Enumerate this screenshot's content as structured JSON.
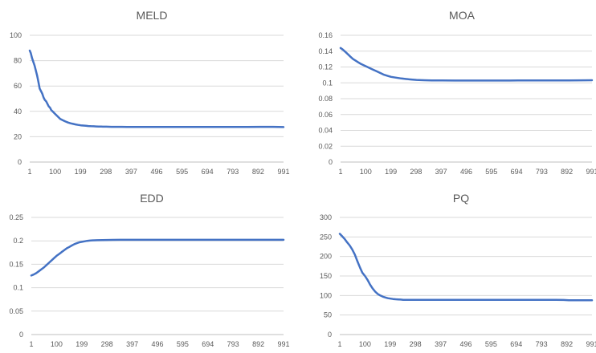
{
  "chart_data": [
    {
      "type": "line",
      "title": "MELD",
      "ylim": [
        0,
        100
      ],
      "yticks": [
        "0",
        "20",
        "40",
        "60",
        "80",
        "100"
      ],
      "xlim": [
        1,
        991
      ],
      "xticks": [
        "1",
        "100",
        "199",
        "298",
        "397",
        "496",
        "595",
        "694",
        "793",
        "892",
        "991"
      ],
      "grid": true,
      "series_color": "#4472C4",
      "series": [
        {
          "x": [
            1,
            5,
            10,
            15,
            20,
            25,
            30,
            35,
            40,
            45,
            50,
            55,
            60,
            65,
            70,
            75,
            80,
            85,
            90,
            95,
            100,
            110,
            120,
            130,
            140,
            150,
            160,
            170,
            180,
            190,
            200,
            210,
            220,
            230,
            240,
            250,
            260,
            270,
            280,
            290,
            300,
            320,
            340,
            360,
            380,
            400,
            450,
            500,
            550,
            600,
            650,
            700,
            750,
            800,
            850,
            900,
            950,
            991
          ],
          "values": [
            88,
            86,
            82,
            79,
            76,
            72,
            68,
            63,
            58,
            56,
            54,
            51,
            49,
            48,
            46,
            44,
            43,
            41,
            40,
            39,
            38,
            36,
            34,
            33,
            32,
            31.2,
            30.6,
            30.1,
            29.7,
            29.3,
            29.0,
            28.8,
            28.6,
            28.4,
            28.3,
            28.2,
            28.1,
            28.0,
            28.0,
            27.9,
            27.9,
            27.8,
            27.8,
            27.8,
            27.7,
            27.7,
            27.7,
            27.7,
            27.7,
            27.7,
            27.7,
            27.7,
            27.7,
            27.7,
            27.7,
            27.8,
            27.8,
            27.6
          ]
        }
      ]
    },
    {
      "type": "line",
      "title": "MOA",
      "ylim": [
        0,
        0.16
      ],
      "yticks": [
        "0",
        "0.02",
        "0.04",
        "0.06",
        "0.08",
        "0.1",
        "0.12",
        "0.14",
        "0.16"
      ],
      "xlim": [
        1,
        991
      ],
      "xticks": [
        "1",
        "100",
        "199",
        "298",
        "397",
        "496",
        "595",
        "694",
        "793",
        "892",
        "991"
      ],
      "grid": true,
      "series_color": "#4472C4",
      "series": [
        {
          "x": [
            1,
            10,
            20,
            30,
            40,
            50,
            60,
            70,
            80,
            90,
            100,
            110,
            120,
            130,
            140,
            150,
            160,
            170,
            180,
            190,
            200,
            220,
            240,
            260,
            280,
            300,
            330,
            360,
            400,
            450,
            500,
            550,
            600,
            650,
            700,
            750,
            800,
            850,
            900,
            950,
            991
          ],
          "values": [
            0.144,
            0.142,
            0.139,
            0.136,
            0.133,
            0.13,
            0.128,
            0.126,
            0.124,
            0.1225,
            0.121,
            0.1195,
            0.118,
            0.1165,
            0.115,
            0.1135,
            0.112,
            0.1105,
            0.1095,
            0.1085,
            0.1075,
            0.1065,
            0.1055,
            0.1048,
            0.1042,
            0.1037,
            0.1033,
            0.1031,
            0.103,
            0.1029,
            0.1029,
            0.1029,
            0.1029,
            0.1029,
            0.103,
            0.103,
            0.1031,
            0.1031,
            0.1031,
            0.1032,
            0.1033
          ]
        }
      ]
    },
    {
      "type": "line",
      "title": "EDD",
      "ylim": [
        0,
        0.25
      ],
      "yticks": [
        "0",
        "0.05",
        "0.1",
        "0.15",
        "0.2",
        "0.25"
      ],
      "xlim": [
        1,
        991
      ],
      "xticks": [
        "1",
        "100",
        "199",
        "298",
        "397",
        "496",
        "595",
        "694",
        "793",
        "892",
        "991"
      ],
      "grid": true,
      "series_color": "#4472C4",
      "series": [
        {
          "x": [
            1,
            10,
            20,
            30,
            40,
            50,
            60,
            70,
            80,
            90,
            100,
            110,
            120,
            130,
            140,
            150,
            160,
            170,
            180,
            190,
            200,
            210,
            220,
            230,
            240,
            250,
            260,
            280,
            300,
            320,
            350,
            400,
            450,
            500,
            550,
            600,
            650,
            700,
            750,
            800,
            850,
            900,
            950,
            991
          ],
          "values": [
            0.126,
            0.128,
            0.131,
            0.135,
            0.139,
            0.143,
            0.148,
            0.153,
            0.158,
            0.163,
            0.168,
            0.172,
            0.176,
            0.18,
            0.184,
            0.187,
            0.19,
            0.193,
            0.195,
            0.197,
            0.198,
            0.199,
            0.2,
            0.2005,
            0.201,
            0.2012,
            0.2014,
            0.2016,
            0.2018,
            0.202,
            0.2022,
            0.2022,
            0.2022,
            0.2022,
            0.2022,
            0.2022,
            0.2022,
            0.2022,
            0.2022,
            0.2022,
            0.2022,
            0.2022,
            0.2022,
            0.2022
          ]
        }
      ]
    },
    {
      "type": "line",
      "title": "PQ",
      "ylim": [
        0,
        300
      ],
      "yticks": [
        "0",
        "50",
        "100",
        "150",
        "200",
        "250",
        "300"
      ],
      "xlim": [
        1,
        991
      ],
      "xticks": [
        "1",
        "100",
        "199",
        "298",
        "397",
        "496",
        "595",
        "694",
        "793",
        "892",
        "991"
      ],
      "grid": true,
      "series_color": "#4472C4",
      "series": [
        {
          "x": [
            1,
            10,
            20,
            30,
            40,
            50,
            60,
            70,
            80,
            90,
            100,
            110,
            120,
            130,
            140,
            150,
            160,
            170,
            180,
            190,
            200,
            210,
            220,
            230,
            240,
            250,
            260,
            270,
            280,
            300,
            320,
            350,
            400,
            450,
            500,
            550,
            600,
            650,
            700,
            750,
            800,
            850,
            880,
            900,
            950,
            991
          ],
          "values": [
            258,
            252,
            245,
            236,
            228,
            218,
            205,
            188,
            172,
            158,
            150,
            140,
            128,
            118,
            110,
            104,
            100,
            97,
            95,
            93,
            92,
            91,
            90.5,
            90,
            89.5,
            89,
            89,
            89,
            89,
            89,
            89,
            89,
            89,
            89,
            89,
            89,
            89,
            89,
            89,
            89,
            89,
            89,
            88.5,
            88,
            88,
            88
          ]
        }
      ]
    }
  ]
}
